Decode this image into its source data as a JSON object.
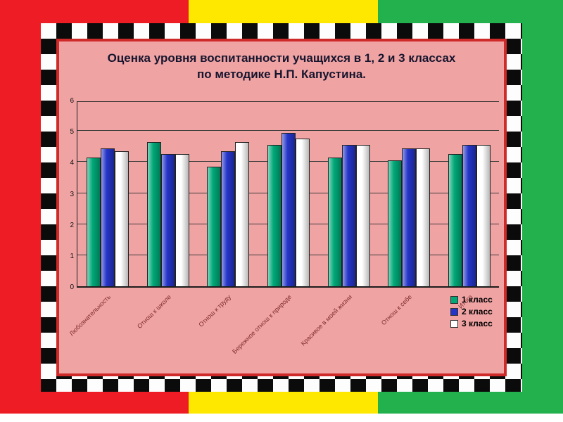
{
  "slide": {
    "title_line1": "Оценка уровня воспитанности учащихся в 1, 2 и 3 классах",
    "title_line2": "по методике Н.П. Капустина."
  },
  "colors": {
    "stripe_red": "#ee1c25",
    "stripe_yellow": "#ffe800",
    "stripe_green": "#22b14c",
    "panel_border": "#cf2a2a",
    "panel_fill": "#f0a3a3",
    "grid_line": "#3b3b3b",
    "series_1": "#00a878",
    "series_2": "#2535c8",
    "series_3": "#ffffff"
  },
  "chart_data": {
    "type": "bar",
    "title": "Оценка уровня воспитанности учащихся в 1, 2 и 3 классах по методике Н.П. Капустина.",
    "categories": [
      "Любознательность",
      "Отнош к школе",
      "Отнош к труду",
      "Бережное отнош к природе",
      "Красивое в моей жизни",
      "Отнош к себе",
      "Итого"
    ],
    "series": [
      {
        "name": "1 класс",
        "color": "#00a878",
        "values": [
          4.2,
          4.7,
          3.9,
          4.6,
          4.2,
          4.1,
          4.3
        ]
      },
      {
        "name": "2 класс",
        "color": "#2535c8",
        "values": [
          4.5,
          4.3,
          4.4,
          5.0,
          4.6,
          4.5,
          4.6
        ]
      },
      {
        "name": "3 класс",
        "color": "#ffffff",
        "values": [
          4.4,
          4.3,
          4.7,
          4.8,
          4.6,
          4.5,
          4.6
        ]
      }
    ],
    "xlabel": "",
    "ylabel": "",
    "ylim": [
      0,
      6
    ],
    "yticks": [
      0,
      1,
      2,
      3,
      4,
      5,
      6
    ],
    "grid": true,
    "legend_position": "bottom-right"
  }
}
